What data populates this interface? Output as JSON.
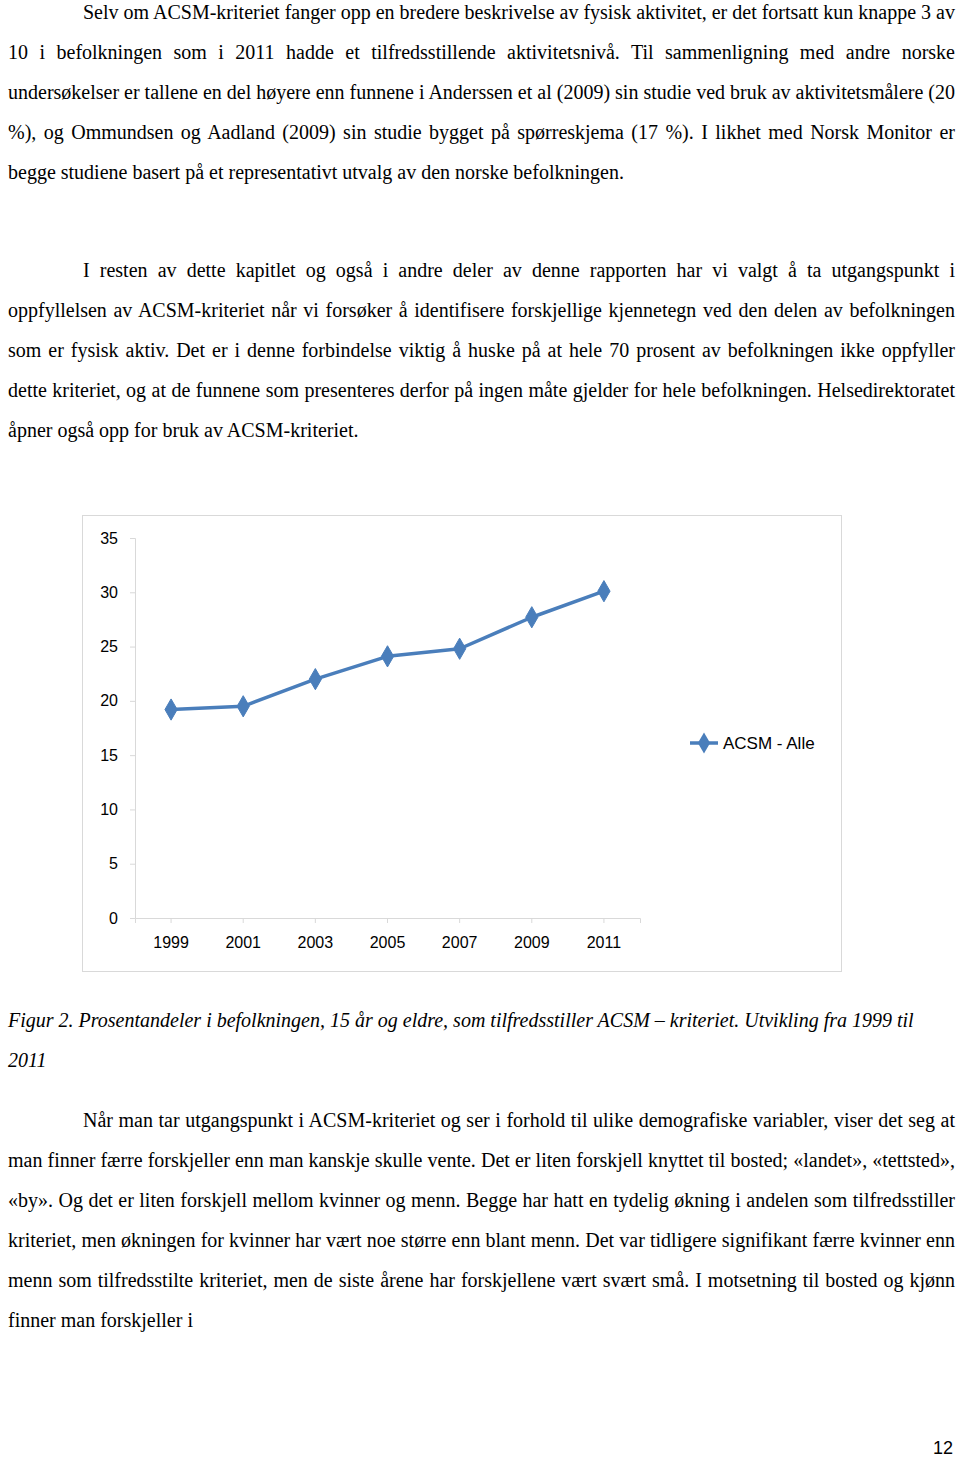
{
  "paragraphs": [
    "Selv om ACSM-kriteriet fanger opp en bredere beskrivelse av fysisk aktivitet, er det fortsatt kun knappe 3 av 10 i befolkningen som i 2011 hadde et tilfredsstillende aktivitetsnivå. Til sammenligning med andre norske undersøkelser er tallene en del høyere enn funnene i Anderssen et al (2009) sin studie ved bruk av aktivitetsmålere (20 %), og Ommundsen og Aadland (2009) sin studie bygget på spørreskjema (17 %). I likhet med Norsk Monitor er begge studiene basert på et representativt utvalg av den norske befolkningen.",
    "I resten av dette kapitlet og også i andre deler av denne rapporten har vi valgt å ta utgangspunkt i oppfyllelsen av ACSM-kriteriet når vi forsøker å identifisere forskjellige kjennetegn ved den delen av befolkningen som er fysisk aktiv. Det er i denne forbindelse viktig å huske på at hele 70 prosent av befolkningen ikke oppfyller dette kriteriet, og at de funnene som presenteres derfor på ingen måte gjelder for hele befolkningen. Helsedirektoratet åpner også opp for bruk av ACSM-kriteriet."
  ],
  "chart_data": {
    "type": "line",
    "categories": [
      "1999",
      "2001",
      "2003",
      "2005",
      "2007",
      "2009",
      "2011"
    ],
    "series": [
      {
        "name": "ACSM - Alle",
        "color": "#4a7ebb",
        "marker": "diamond",
        "values": [
          19.2,
          19.5,
          22.0,
          24.1,
          24.8,
          27.7,
          30.1
        ]
      }
    ],
    "ylim": [
      0,
      35
    ],
    "yticks": [
      0,
      5,
      10,
      15,
      20,
      25,
      30,
      35
    ],
    "grid": false,
    "legend": "right"
  },
  "caption": "Figur 2. Prosentandeler i befolkningen, 15 år og eldre, som tilfredsstiller ACSM – kriteriet. Utvikling fra 1999 til 2011",
  "paragraphs_after": [
    "Når man tar utgangspunkt i ACSM-kriteriet og ser i forhold til ulike demografiske variabler, viser det seg at man finner færre forskjeller enn man kanskje skulle vente. Det er liten forskjell knyttet til bosted; «landet», «tettsted», «by». Og det er liten forskjell mellom kvinner og menn. Begge har hatt en tydelig økning i andelen som tilfredsstiller kriteriet, men økningen for kvinner har vært noe større enn blant menn. Det var tidligere signifikant færre kvinner enn menn som tilfredsstilte kriteriet, men de siste årene har forskjellene vært svært små. I motsetning til bosted og kjønn finner man forskjeller i"
  ],
  "page_number": 12
}
